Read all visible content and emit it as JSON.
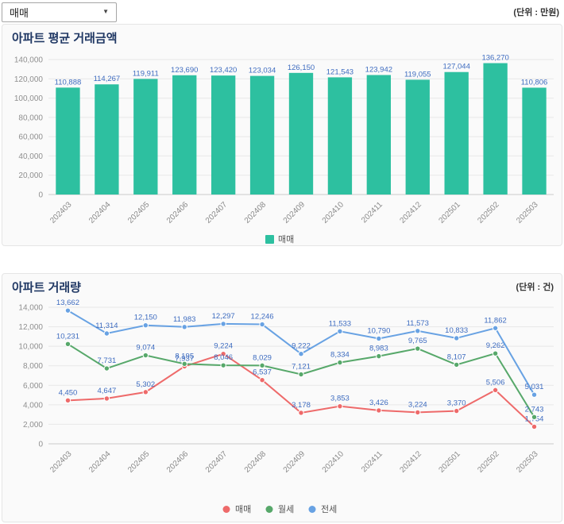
{
  "topbar": {
    "dropdown_value": "매매",
    "dropdown_caret": "▼"
  },
  "chart_data": [
    {
      "type": "bar",
      "title": "아파트 평균 거래금액",
      "unit_label": "(단위 : 만원)",
      "categories": [
        "202403",
        "202404",
        "202405",
        "202406",
        "202407",
        "202408",
        "202409",
        "202410",
        "202411",
        "202412",
        "202501",
        "202502",
        "202503"
      ],
      "series": [
        {
          "name": "매매",
          "color": "#2dc0a0",
          "values": [
            110888,
            114267,
            119911,
            123690,
            123420,
            123034,
            126150,
            121543,
            123942,
            119055,
            127044,
            136270,
            110806
          ]
        }
      ],
      "ylim": [
        0,
        140000
      ],
      "ytick_step": 20000,
      "label_color": "#3e6cc0",
      "grid": true,
      "legend_position": "bottom",
      "x_label_rotation": -45
    },
    {
      "type": "line",
      "title": "아파트 거래량",
      "unit_label": "(단위 : 건)",
      "categories": [
        "202403",
        "202404",
        "202405",
        "202406",
        "202407",
        "202408",
        "202409",
        "202410",
        "202411",
        "202412",
        "202501",
        "202502",
        "202503"
      ],
      "series": [
        {
          "name": "매매",
          "color": "#ee6a6a",
          "values": [
            4450,
            4647,
            5302,
            7937,
            9224,
            6537,
            3178,
            3853,
            3426,
            3224,
            3370,
            5506,
            1754
          ]
        },
        {
          "name": "월세",
          "color": "#57a86a",
          "values": [
            10231,
            7731,
            9074,
            8195,
            8046,
            8029,
            7121,
            8334,
            8983,
            9765,
            8107,
            9262,
            2743
          ]
        },
        {
          "name": "전세",
          "color": "#68a2e3",
          "values": [
            13662,
            11314,
            12150,
            11983,
            12297,
            12246,
            9222,
            11533,
            10790,
            11573,
            10833,
            11862,
            5031
          ]
        }
      ],
      "ylim": [
        0,
        14000
      ],
      "ytick_step": 2000,
      "label_color": "#3e6cc0",
      "grid": true,
      "legend_position": "bottom",
      "x_label_rotation": -45
    }
  ]
}
